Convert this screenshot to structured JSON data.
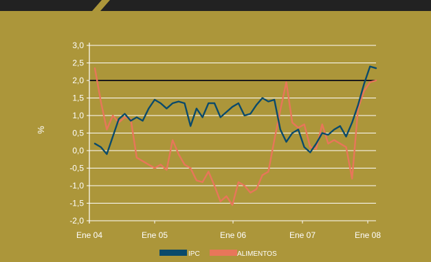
{
  "chart_data": {
    "type": "line",
    "ylabel": "%",
    "ylim": [
      -2.0,
      3.0
    ],
    "yticks": [
      "3,0",
      "2,5",
      "2,0",
      "1,5",
      "1,0",
      "0,5",
      "0,0",
      "-0,5",
      "-1,0",
      "-1,5",
      "-2,0"
    ],
    "x_tick_labels": [
      "Ene 04",
      "Ene 05",
      "Ene 06",
      "Ene 07",
      "Ene 08"
    ],
    "reference_line": 2.0,
    "grid": "horizontal",
    "legend_placement": "bottom",
    "colors": {
      "background": "#ac963a",
      "ipc": "#0a4a6b",
      "alimentos": "#e8765a",
      "reference": "#1a1a1a",
      "grid": "#ffffff",
      "header": "#222222"
    },
    "series": [
      {
        "name": "IPC",
        "values": [
          0.2,
          0.1,
          -0.1,
          0.4,
          0.9,
          1.05,
          0.85,
          0.95,
          0.85,
          1.2,
          1.45,
          1.35,
          1.2,
          1.35,
          1.4,
          1.35,
          0.7,
          1.2,
          0.95,
          1.35,
          1.35,
          0.95,
          1.1,
          1.25,
          1.35,
          1.0,
          1.05,
          1.3,
          1.5,
          1.4,
          1.45,
          0.6,
          0.25,
          0.5,
          0.6,
          0.1,
          -0.05,
          0.2,
          0.5,
          0.45,
          0.6,
          0.7,
          0.4,
          0.8,
          1.3,
          1.9,
          2.4,
          2.35
        ]
      },
      {
        "name": "ALIMENTOS",
        "values": [
          2.35,
          1.4,
          0.6,
          1.0,
          0.8,
          0.95,
          0.9,
          -0.2,
          -0.3,
          -0.4,
          -0.5,
          -0.4,
          -0.55,
          0.3,
          -0.1,
          -0.4,
          -0.5,
          -0.85,
          -0.9,
          -0.6,
          -1.0,
          -1.45,
          -1.3,
          -1.55,
          -0.9,
          -1.0,
          -1.2,
          -1.1,
          -0.7,
          -0.6,
          0.3,
          1.15,
          1.95,
          0.8,
          0.65,
          0.75,
          0.1,
          0.05,
          0.75,
          0.2,
          0.3,
          0.2,
          0.1,
          -0.8,
          1.2,
          1.7,
          1.95,
          2.0
        ]
      }
    ]
  }
}
